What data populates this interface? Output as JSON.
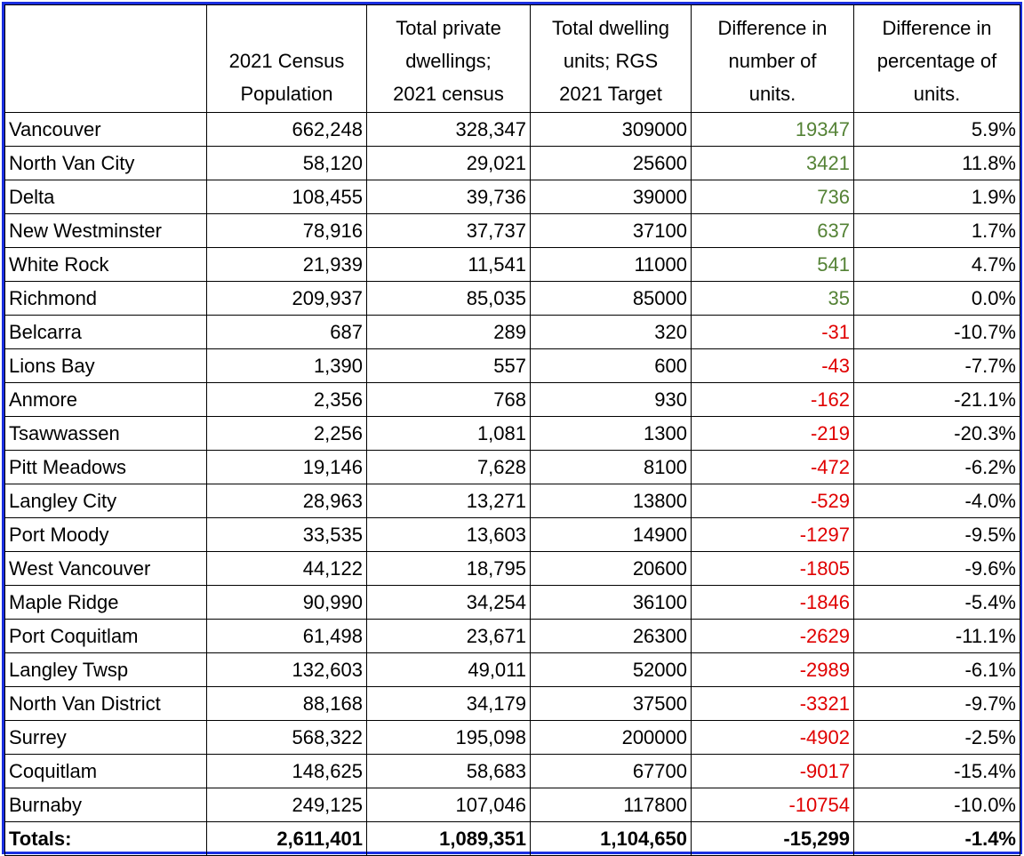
{
  "table": {
    "header": [
      [],
      [
        "2021 Census",
        "Population"
      ],
      [
        "Total private",
        "dwellings;",
        "2021 census"
      ],
      [
        "Total dwelling",
        "units; RGS",
        "2021 Target"
      ],
      [
        "Difference in",
        "number of",
        "units."
      ],
      [
        "Difference in",
        "percentage of",
        "units."
      ]
    ],
    "diff_colors": {
      "positive": "#548235",
      "negative": "#e00000"
    },
    "rows": [
      [
        "Vancouver",
        "662,248",
        "328,347",
        "309000",
        "19347",
        "5.9%"
      ],
      [
        "North Van City",
        "58,120",
        "29,021",
        "25600",
        "3421",
        "11.8%"
      ],
      [
        "Delta",
        "108,455",
        "39,736",
        "39000",
        "736",
        "1.9%"
      ],
      [
        "New Westminster",
        "78,916",
        "37,737",
        "37100",
        "637",
        "1.7%"
      ],
      [
        "White Rock",
        "21,939",
        "11,541",
        "11000",
        "541",
        "4.7%"
      ],
      [
        "Richmond",
        "209,937",
        "85,035",
        "85000",
        "35",
        "0.0%"
      ],
      [
        "Belcarra",
        "687",
        "289",
        "320",
        "-31",
        "-10.7%"
      ],
      [
        "Lions Bay",
        "1,390",
        "557",
        "600",
        "-43",
        "-7.7%"
      ],
      [
        "Anmore",
        "2,356",
        "768",
        "930",
        "-162",
        "-21.1%"
      ],
      [
        "Tsawwassen",
        "2,256",
        "1,081",
        "1300",
        "-219",
        "-20.3%"
      ],
      [
        "Pitt Meadows",
        "19,146",
        "7,628",
        "8100",
        "-472",
        "-6.2%"
      ],
      [
        "Langley City",
        "28,963",
        "13,271",
        "13800",
        "-529",
        "-4.0%"
      ],
      [
        "Port Moody",
        "33,535",
        "13,603",
        "14900",
        "-1297",
        "-9.5%"
      ],
      [
        "West Vancouver",
        "44,122",
        "18,795",
        "20600",
        "-1805",
        "-9.6%"
      ],
      [
        "Maple Ridge",
        "90,990",
        "34,254",
        "36100",
        "-1846",
        "-5.4%"
      ],
      [
        "Port Coquitlam",
        "61,498",
        "23,671",
        "26300",
        "-2629",
        "-11.1%"
      ],
      [
        "Langley Twsp",
        "132,603",
        "49,011",
        "52000",
        "-2989",
        "-6.1%"
      ],
      [
        "North Van District",
        "88,168",
        "34,179",
        "37500",
        "-3321",
        "-9.7%"
      ],
      [
        "Surrey",
        "568,322",
        "195,098",
        "200000",
        "-4902",
        "-2.5%"
      ],
      [
        "Coquitlam",
        "148,625",
        "58,683",
        "67700",
        "-9017",
        "-15.4%"
      ],
      [
        "Burnaby",
        "249,125",
        "107,046",
        "117800",
        "-10754",
        "-10.0%"
      ]
    ],
    "totals": [
      "Totals:",
      "2,611,401",
      "1,089,351",
      "1,104,650",
      "-15,299",
      "-1.4%"
    ]
  }
}
